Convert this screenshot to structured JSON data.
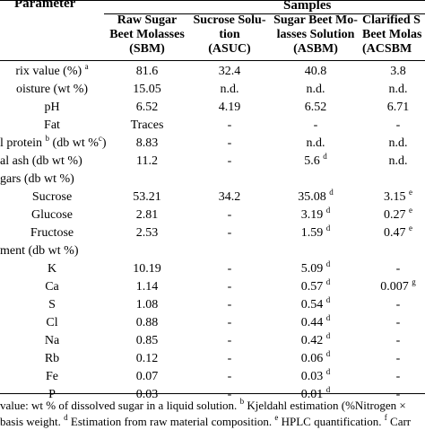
{
  "header": {
    "parameter": "Parameter",
    "samples": "Samples",
    "columns": [
      [
        "Raw Sugar",
        "Beet Molasses",
        "(SBM)"
      ],
      [
        "Sucrose Solu-",
        "tion",
        "(ASUC)"
      ],
      [
        "Sugar Beet Mo-",
        "lasses Solution",
        "(ASBM)"
      ],
      [
        "Clarified S",
        "Beet Molas",
        "(ACSBM"
      ]
    ]
  },
  "rows": [
    {
      "label": "rix value (%)",
      "label_sup": "a",
      "align": "center",
      "v": [
        "81.6",
        "32.4",
        "40.8",
        "3.8"
      ],
      "s": [
        "",
        "",
        "",
        ""
      ]
    },
    {
      "label": "oisture (wt %)",
      "label_sup": "",
      "align": "center",
      "v": [
        "15.05",
        "n.d.",
        "n.d.",
        "n.d."
      ],
      "s": [
        "",
        "",
        "",
        ""
      ]
    },
    {
      "label": "pH",
      "label_sup": "",
      "align": "center",
      "v": [
        "6.52",
        "4.19",
        "6.52",
        "6.71"
      ],
      "s": [
        "",
        "",
        "",
        ""
      ]
    },
    {
      "label": "Fat",
      "label_sup": "",
      "align": "center",
      "v": [
        "Traces",
        "-",
        "-",
        "-"
      ],
      "s": [
        "",
        "",
        "",
        ""
      ]
    },
    {
      "label": "l protein",
      "label_sup": "b",
      "label_tail": " (db wt %",
      "label_tail_sup": "c",
      "label_end": ")",
      "align": "left",
      "v": [
        "8.83",
        "-",
        "n.d.",
        "n.d."
      ],
      "s": [
        "",
        "",
        "",
        ""
      ]
    },
    {
      "label": "al ash (db wt %)",
      "label_sup": "",
      "align": "left",
      "v": [
        "11.2",
        "-",
        "5.6",
        "n.d."
      ],
      "s": [
        "",
        "",
        "d",
        ""
      ]
    },
    {
      "label": "gars (db wt %)",
      "label_sup": "",
      "align": "left",
      "v": [
        "",
        "",
        "",
        ""
      ],
      "s": [
        "",
        "",
        "",
        ""
      ]
    },
    {
      "label": "Sucrose",
      "label_sup": "",
      "align": "center",
      "v": [
        "53.21",
        "34.2",
        "35.08",
        "3.15"
      ],
      "s": [
        "",
        "",
        "d",
        "e"
      ]
    },
    {
      "label": "Glucose",
      "label_sup": "",
      "align": "center",
      "v": [
        "2.81",
        "-",
        "3.19",
        "0.27"
      ],
      "s": [
        "",
        "",
        "d",
        "e"
      ]
    },
    {
      "label": "Fructose",
      "label_sup": "",
      "align": "center",
      "v": [
        "2.53",
        "-",
        "1.59",
        "0.47"
      ],
      "s": [
        "",
        "",
        "d",
        "e"
      ]
    },
    {
      "label": "ment (db wt %)",
      "label_sup": "",
      "align": "left",
      "v": [
        "",
        "",
        "",
        ""
      ],
      "s": [
        "",
        "",
        "",
        ""
      ]
    },
    {
      "label": "K",
      "label_sup": "",
      "align": "center",
      "v": [
        "10.19",
        "-",
        "5.09",
        "-"
      ],
      "s": [
        "",
        "",
        "d",
        ""
      ]
    },
    {
      "label": "Ca",
      "label_sup": "",
      "align": "center",
      "v": [
        "1.14",
        "-",
        "0.57",
        "0.007"
      ],
      "s": [
        "",
        "",
        "d",
        "g"
      ]
    },
    {
      "label": "S",
      "label_sup": "",
      "align": "center",
      "v": [
        "1.08",
        "-",
        "0.54",
        "-"
      ],
      "s": [
        "",
        "",
        "d",
        ""
      ]
    },
    {
      "label": "Cl",
      "label_sup": "",
      "align": "center",
      "v": [
        "0.88",
        "-",
        "0.44",
        "-"
      ],
      "s": [
        "",
        "",
        "d",
        ""
      ]
    },
    {
      "label": "Na",
      "label_sup": "",
      "align": "center",
      "v": [
        "0.85",
        "-",
        "0.42",
        "-"
      ],
      "s": [
        "",
        "",
        "d",
        ""
      ]
    },
    {
      "label": "Rb",
      "label_sup": "",
      "align": "center",
      "v": [
        "0.12",
        "-",
        "0.06",
        "-"
      ],
      "s": [
        "",
        "",
        "d",
        ""
      ]
    },
    {
      "label": "Fe",
      "label_sup": "",
      "align": "center",
      "v": [
        "0.07",
        "-",
        "0.03",
        "-"
      ],
      "s": [
        "",
        "",
        "d",
        ""
      ]
    },
    {
      "label": "P",
      "label_sup": "",
      "align": "center",
      "v": [
        "0.03",
        "-",
        "0.01",
        "-"
      ],
      "s": [
        "",
        "",
        "d",
        ""
      ]
    }
  ],
  "footnotes": [
    {
      "sup": "",
      "text": "value: wt % of dissolved sugar in a liquid solution. ",
      "sup2": "b",
      "text2": " Kjeldahl estimation (%Nitrogen ×"
    },
    {
      "sup": "",
      "text": "basis weight. ",
      "sup2": "d",
      "text2": " Estimation from raw material composition. ",
      "sup3": "e",
      "text3": " HPLC quantification. ",
      "sup4": "f",
      "text4": " Carr"
    }
  ]
}
